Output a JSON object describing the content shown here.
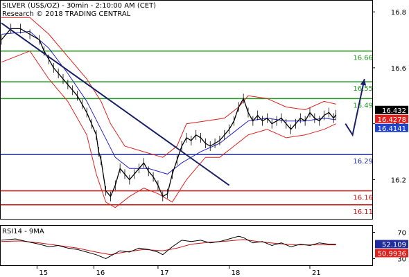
{
  "chart_data": {
    "type": "line",
    "title": "SILVER (US$/OZ) - 30min - 2:10:00 AM (CET)",
    "subtitle": "Research © 2018 TRADING CENTRAL",
    "x_ticks": [
      "15",
      "16",
      "17",
      "18",
      "21"
    ],
    "y_ticks": [
      16.2,
      16.4,
      16.6,
      16.8
    ],
    "ylim": [
      16.06,
      16.84
    ],
    "price": {
      "last": 16.432,
      "last_label": "16.432",
      "ma_fast_label": "16.4278",
      "ma_slow_label": "16.4141",
      "points": [
        [
          0,
          16.7
        ],
        [
          2,
          16.74
        ],
        [
          4,
          16.74
        ],
        [
          6,
          16.72
        ],
        [
          8,
          16.7
        ],
        [
          9,
          16.66
        ],
        [
          10,
          16.63
        ],
        [
          11,
          16.6
        ],
        [
          12,
          16.58
        ],
        [
          13,
          16.56
        ],
        [
          14,
          16.54
        ],
        [
          15,
          16.52
        ],
        [
          16,
          16.5
        ],
        [
          17,
          16.47
        ],
        [
          18,
          16.44
        ],
        [
          19,
          16.4
        ],
        [
          20,
          16.36
        ],
        [
          20.5,
          16.3
        ],
        [
          21,
          16.27
        ],
        [
          22,
          16.16
        ],
        [
          23,
          16.14
        ],
        [
          24,
          16.18
        ],
        [
          25,
          16.24
        ],
        [
          26,
          16.22
        ],
        [
          27,
          16.2
        ],
        [
          28,
          16.22
        ],
        [
          29,
          16.24
        ],
        [
          30,
          16.26
        ],
        [
          31,
          16.23
        ],
        [
          32,
          16.21
        ],
        [
          33,
          16.18
        ],
        [
          34,
          16.14
        ],
        [
          35,
          16.15
        ],
        [
          36,
          16.22
        ],
        [
          37,
          16.27
        ],
        [
          38,
          16.32
        ],
        [
          39,
          16.35
        ],
        [
          40,
          16.34
        ],
        [
          41,
          16.36
        ],
        [
          42,
          16.35
        ],
        [
          43,
          16.33
        ],
        [
          44,
          16.32
        ],
        [
          45,
          16.33
        ],
        [
          46,
          16.34
        ],
        [
          47,
          16.36
        ],
        [
          48,
          16.38
        ],
        [
          49,
          16.41
        ],
        [
          50,
          16.46
        ],
        [
          51,
          16.49
        ],
        [
          52,
          16.44
        ],
        [
          53,
          16.41
        ],
        [
          54,
          16.43
        ],
        [
          55,
          16.41
        ],
        [
          56,
          16.42
        ],
        [
          57,
          16.4
        ],
        [
          58,
          16.41
        ],
        [
          59,
          16.42
        ],
        [
          60,
          16.4
        ],
        [
          61,
          16.38
        ],
        [
          62,
          16.4
        ],
        [
          63,
          16.42
        ],
        [
          64,
          16.41
        ],
        [
          65,
          16.44
        ],
        [
          66,
          16.42
        ],
        [
          67,
          16.41
        ],
        [
          68,
          16.43
        ],
        [
          69,
          16.44
        ],
        [
          70,
          16.42
        ],
        [
          70.5,
          16.432
        ]
      ],
      "bollinger_upper": [
        [
          0,
          16.78
        ],
        [
          6,
          16.78
        ],
        [
          10,
          16.72
        ],
        [
          14,
          16.64
        ],
        [
          18,
          16.56
        ],
        [
          21,
          16.48
        ],
        [
          23,
          16.4
        ],
        [
          26,
          16.32
        ],
        [
          30,
          16.3
        ],
        [
          34,
          16.28
        ],
        [
          37,
          16.32
        ],
        [
          39,
          16.4
        ],
        [
          43,
          16.41
        ],
        [
          47,
          16.42
        ],
        [
          50,
          16.46
        ],
        [
          52,
          16.5
        ],
        [
          56,
          16.49
        ],
        [
          60,
          16.46
        ],
        [
          64,
          16.45
        ],
        [
          68,
          16.48
        ],
        [
          70.5,
          16.47
        ]
      ],
      "bollinger_lower": [
        [
          0,
          16.62
        ],
        [
          6,
          16.66
        ],
        [
          10,
          16.56
        ],
        [
          14,
          16.48
        ],
        [
          18,
          16.36
        ],
        [
          20,
          16.22
        ],
        [
          22,
          16.12
        ],
        [
          24,
          16.1
        ],
        [
          27,
          16.14
        ],
        [
          30,
          16.17
        ],
        [
          33,
          16.15
        ],
        [
          36,
          16.12
        ],
        [
          39,
          16.2
        ],
        [
          43,
          16.28
        ],
        [
          46,
          16.28
        ],
        [
          49,
          16.32
        ],
        [
          52,
          16.36
        ],
        [
          56,
          16.38
        ],
        [
          60,
          16.35
        ],
        [
          64,
          16.36
        ],
        [
          68,
          16.38
        ],
        [
          70.5,
          16.4
        ]
      ],
      "moving_average": [
        [
          0,
          16.72
        ],
        [
          6,
          16.73
        ],
        [
          10,
          16.67
        ],
        [
          14,
          16.58
        ],
        [
          18,
          16.48
        ],
        [
          21,
          16.38
        ],
        [
          24,
          16.28
        ],
        [
          27,
          16.24
        ],
        [
          31,
          16.24
        ],
        [
          35,
          16.22
        ],
        [
          38,
          16.26
        ],
        [
          42,
          16.3
        ],
        [
          46,
          16.33
        ],
        [
          49,
          16.37
        ],
        [
          52,
          16.41
        ],
        [
          56,
          16.42
        ],
        [
          60,
          16.41
        ],
        [
          64,
          16.41
        ],
        [
          68,
          16.42
        ],
        [
          70.5,
          16.414
        ]
      ]
    },
    "levels": [
      {
        "value": 16.66,
        "label": "16.66",
        "color": "#1f9a1f"
      },
      {
        "value": 16.55,
        "label": "16.55",
        "color": "#1f9a1f"
      },
      {
        "value": 16.49,
        "label": "16.49",
        "color": "#1f9a1f"
      },
      {
        "value": 16.29,
        "label": "16.29",
        "color": "#1f2b9e"
      },
      {
        "value": 16.16,
        "label": "16.16",
        "color": "#d01010"
      },
      {
        "value": 16.11,
        "label": "16.11",
        "color": "#d01010"
      }
    ],
    "trendline": {
      "from": [
        0,
        16.76
      ],
      "to": [
        48,
        16.18
      ],
      "color": "#1a2068"
    },
    "projection": {
      "points": [
        [
          72.5,
          16.4
        ],
        [
          74,
          16.36
        ],
        [
          76.5,
          16.56
        ]
      ],
      "color": "#1a2068"
    },
    "rsi": {
      "label": "RSI14 - 9MA",
      "ylim": [
        20,
        80
      ],
      "y_ticks": [
        70,
        30
      ],
      "rsi_label": "52.109",
      "ma_label": "50.9936",
      "rsi_values": [
        [
          0,
          58
        ],
        [
          3,
          60
        ],
        [
          6,
          55
        ],
        [
          8,
          52
        ],
        [
          10,
          48
        ],
        [
          12,
          50
        ],
        [
          14,
          46
        ],
        [
          16,
          44
        ],
        [
          18,
          40
        ],
        [
          20,
          36
        ],
        [
          22,
          30
        ],
        [
          23,
          34
        ],
        [
          25,
          42
        ],
        [
          27,
          40
        ],
        [
          29,
          46
        ],
        [
          31,
          44
        ],
        [
          33,
          40
        ],
        [
          34,
          36
        ],
        [
          36,
          48
        ],
        [
          38,
          58
        ],
        [
          40,
          56
        ],
        [
          42,
          58
        ],
        [
          44,
          54
        ],
        [
          46,
          56
        ],
        [
          48,
          60
        ],
        [
          50,
          64
        ],
        [
          51,
          62
        ],
        [
          53,
          54
        ],
        [
          55,
          56
        ],
        [
          57,
          50
        ],
        [
          59,
          54
        ],
        [
          61,
          48
        ],
        [
          63,
          52
        ],
        [
          65,
          50
        ],
        [
          67,
          54
        ],
        [
          69,
          52
        ],
        [
          70.5,
          52.109
        ]
      ],
      "ma_values": [
        [
          0,
          56
        ],
        [
          4,
          57
        ],
        [
          8,
          54
        ],
        [
          12,
          50
        ],
        [
          16,
          46
        ],
        [
          20,
          40
        ],
        [
          23,
          36
        ],
        [
          26,
          40
        ],
        [
          30,
          44
        ],
        [
          34,
          42
        ],
        [
          37,
          46
        ],
        [
          40,
          52
        ],
        [
          44,
          55
        ],
        [
          48,
          57
        ],
        [
          51,
          59
        ],
        [
          54,
          56
        ],
        [
          58,
          53
        ],
        [
          62,
          51
        ],
        [
          66,
          51
        ],
        [
          70.5,
          50.9936
        ]
      ]
    },
    "colors": {
      "price": "#000000",
      "bollinger": "#e0201c",
      "moving_average": "#2222cc",
      "rsi": "#000000",
      "rsi_ma": "#cc1111",
      "last_box": "#000000",
      "ma_fast_box": "#e0201c",
      "ma_slow_box": "#2244cc",
      "rsi_box": "#1f2b9e",
      "rsi_ma_box": "#e0201c"
    }
  }
}
